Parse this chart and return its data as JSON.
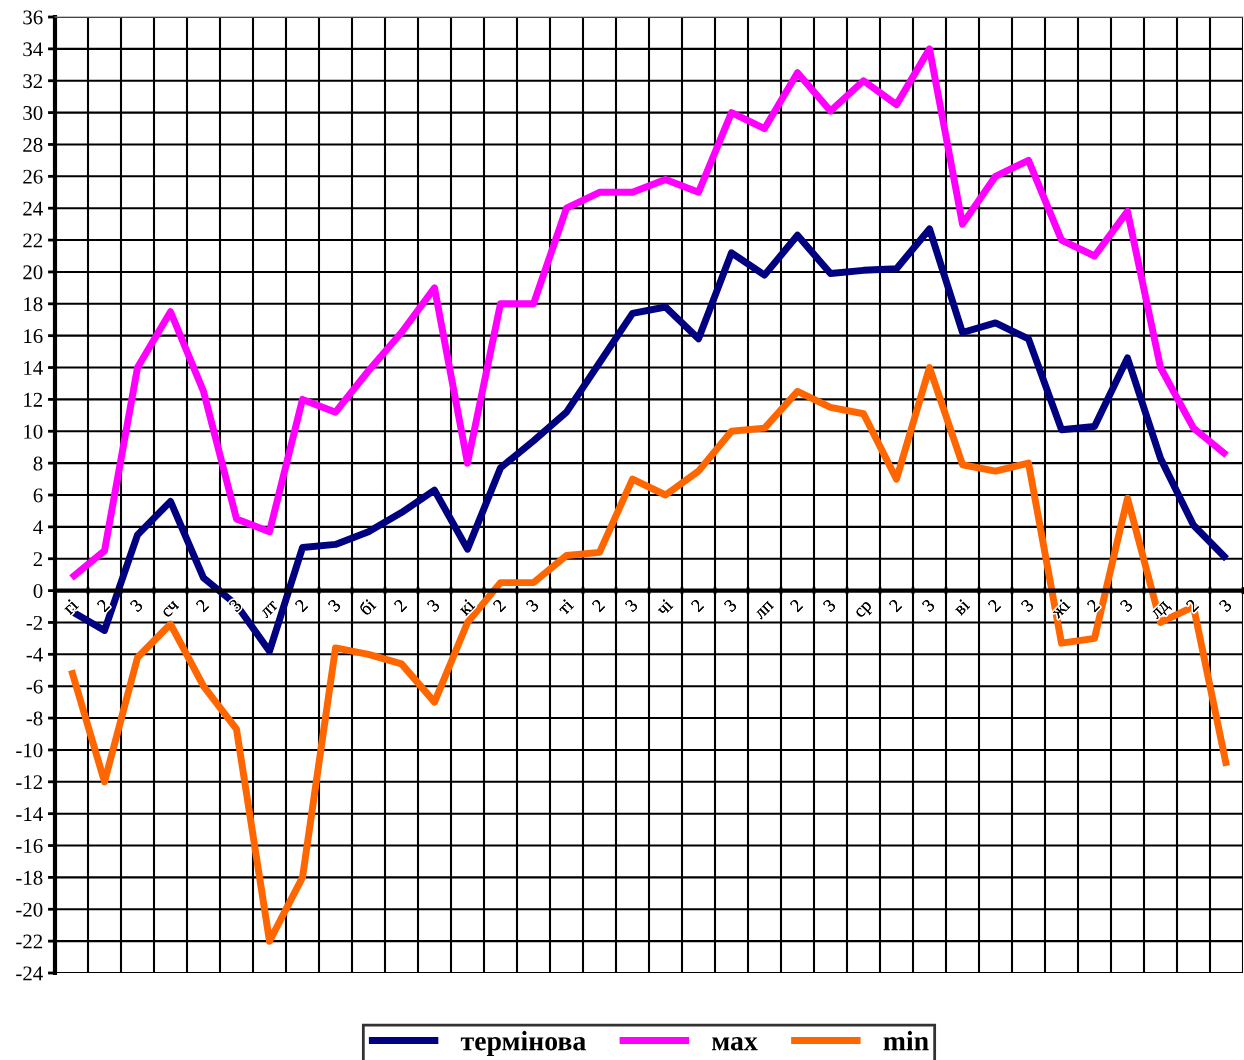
{
  "chart_data": {
    "type": "line",
    "categories": [
      "гі",
      "2",
      "3",
      "сч",
      "2",
      "3",
      "лт",
      "2",
      "3",
      "бі",
      "2",
      "3",
      "кі",
      "2",
      "3",
      "ті",
      "2",
      "3",
      "чі",
      "2",
      "3",
      "лп",
      "2",
      "3",
      "ср",
      "2",
      "3",
      "ві",
      "2",
      "3",
      "жі",
      "2",
      "3",
      "лд",
      "2",
      "3"
    ],
    "series": [
      {
        "name": "термінова",
        "color": "#000080",
        "values": [
          -1.3,
          -2.5,
          3.5,
          5.6,
          0.8,
          -0.9,
          -3.8,
          2.7,
          2.9,
          3.7,
          4.9,
          6.3,
          2.6,
          7.7,
          9.4,
          11.2,
          14.3,
          17.4,
          17.8,
          15.8,
          21.2,
          19.8,
          22.3,
          19.9,
          20.1,
          20.2,
          22.7,
          16.2,
          16.8,
          15.8,
          10.1,
          10.3,
          14.6,
          8.3,
          4.1,
          2.0
        ]
      },
      {
        "name": "мах",
        "color": "#ff00ff",
        "values": [
          0.8,
          2.5,
          14,
          17.5,
          12.5,
          4.5,
          3.7,
          12,
          11.2,
          13.8,
          16.2,
          19,
          8,
          18,
          18,
          24,
          25,
          25,
          25.8,
          25,
          30,
          29,
          32.5,
          30.1,
          32,
          30.5,
          34,
          23,
          26,
          27,
          22,
          21,
          23.8,
          14,
          10.2,
          8.5
        ]
      },
      {
        "name": "min",
        "color": "#ff6600",
        "values": [
          -5,
          -12,
          -4.2,
          -2.1,
          -6,
          -8.7,
          -22,
          -18,
          -3.6,
          -4,
          -4.6,
          -7,
          -2,
          0.5,
          0.5,
          2.2,
          2.4,
          7,
          6,
          7.5,
          10,
          10.2,
          12.5,
          11.5,
          11.1,
          7,
          14,
          7.9,
          7.5,
          8,
          -3.3,
          -3,
          5.8,
          -2,
          -1,
          -11
        ]
      }
    ],
    "ylim": [
      -24,
      36
    ],
    "yticks": [
      -24,
      -22,
      -20,
      -18,
      -16,
      -14,
      -12,
      -10,
      -8,
      -6,
      -4,
      -2,
      0,
      2,
      4,
      6,
      8,
      10,
      12,
      14,
      16,
      18,
      20,
      22,
      24,
      26,
      28,
      30,
      32,
      34,
      36
    ],
    "grid": true,
    "legend": "bottom",
    "marker": "none",
    "line_style": "solid"
  }
}
